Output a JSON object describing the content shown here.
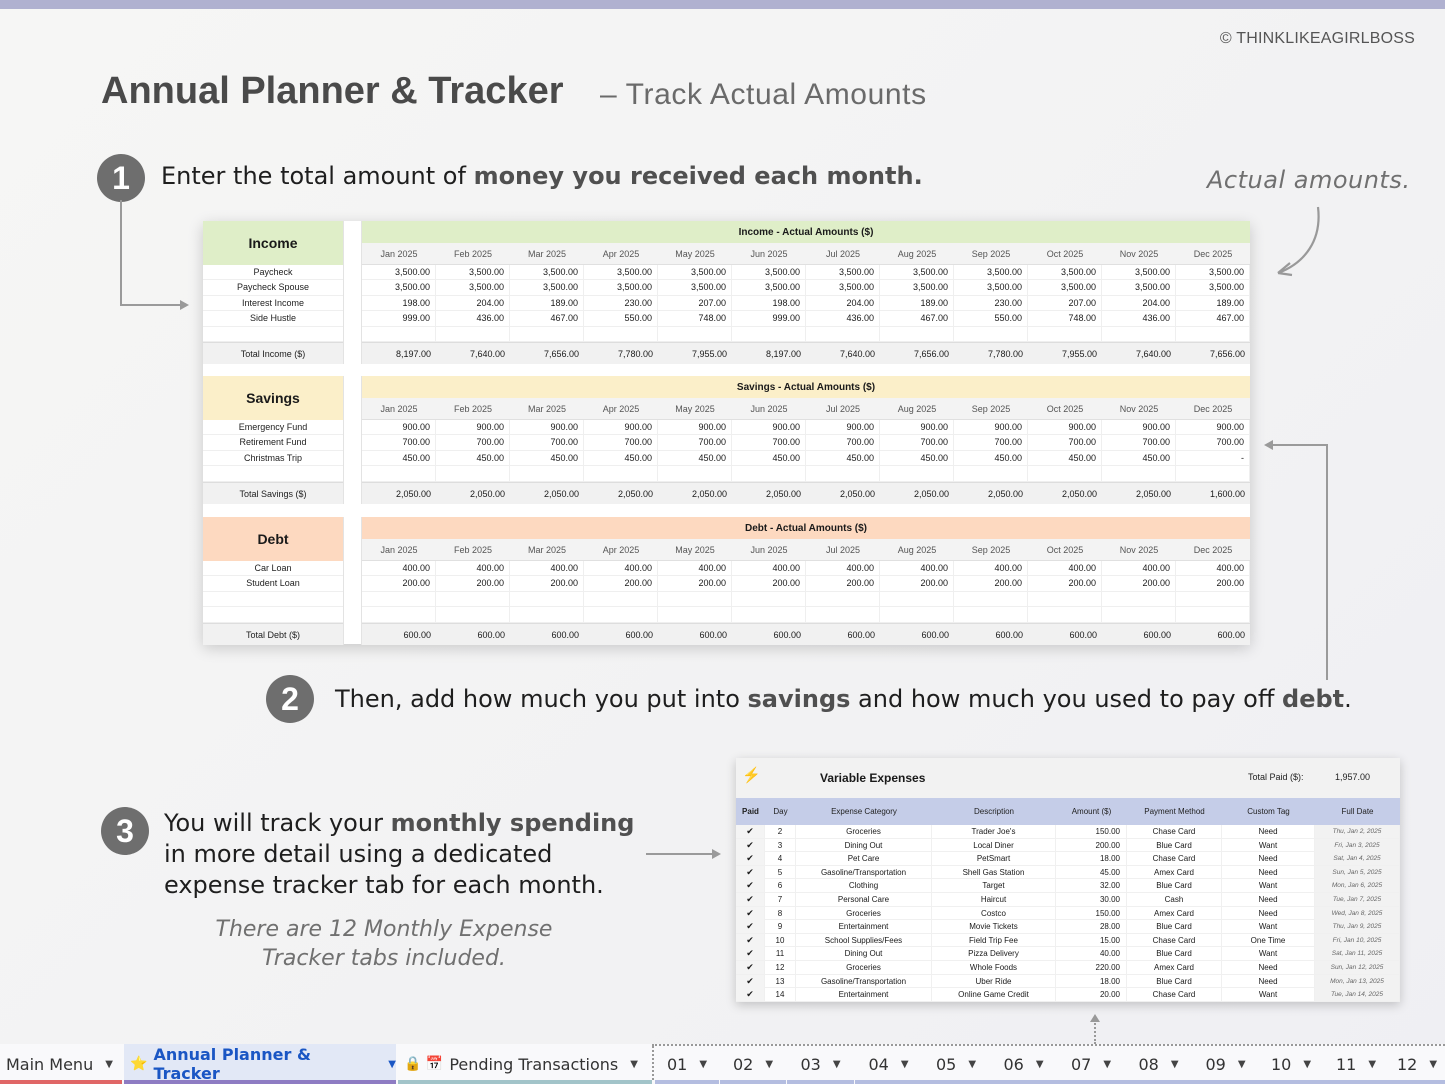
{
  "header": {
    "copyright": "© THINKLIKEAGIRLBOSS",
    "title": "Annual Planner & Tracker",
    "subtitle": "– Track Actual Amounts",
    "annotation": "Actual amounts."
  },
  "steps": [
    {
      "number": "1",
      "text_pre": "Enter the total amount of ",
      "text_bold": "money you received each month."
    },
    {
      "number": "2",
      "text_pre": "Then, add how much you put into ",
      "bold1": "savings",
      "text_mid": " and how much you used to pay off ",
      "bold2": "debt",
      "text_post": "."
    },
    {
      "number": "3",
      "line1_pre": "You will track your ",
      "line1_bold": "monthly spending",
      "line2": "in more detail using a dedicated",
      "line3": "expense tracker tab for each month.",
      "note1": "There are 12 Monthly Expense",
      "note2": "Tracker tabs included."
    }
  ],
  "months": [
    "Jan 2025",
    "Feb 2025",
    "Mar 2025",
    "Apr 2025",
    "May 2025",
    "Jun 2025",
    "Jul 2025",
    "Aug 2025",
    "Sep 2025",
    "Oct 2025",
    "Nov 2025",
    "Dec 2025"
  ],
  "income": {
    "label": "Income",
    "header": "Income - Actual Amounts ($)",
    "color": "#dfeec8",
    "rows": [
      {
        "name": "Paycheck",
        "values": [
          "3,500.00",
          "3,500.00",
          "3,500.00",
          "3,500.00",
          "3,500.00",
          "3,500.00",
          "3,500.00",
          "3,500.00",
          "3,500.00",
          "3,500.00",
          "3,500.00",
          "3,500.00"
        ]
      },
      {
        "name": "Paycheck Spouse",
        "values": [
          "3,500.00",
          "3,500.00",
          "3,500.00",
          "3,500.00",
          "3,500.00",
          "3,500.00",
          "3,500.00",
          "3,500.00",
          "3,500.00",
          "3,500.00",
          "3,500.00",
          "3,500.00"
        ]
      },
      {
        "name": "Interest Income",
        "values": [
          "198.00",
          "204.00",
          "189.00",
          "230.00",
          "207.00",
          "198.00",
          "204.00",
          "189.00",
          "230.00",
          "207.00",
          "204.00",
          "189.00"
        ]
      },
      {
        "name": "Side Hustle",
        "values": [
          "999.00",
          "436.00",
          "467.00",
          "550.00",
          "748.00",
          "999.00",
          "436.00",
          "467.00",
          "550.00",
          "748.00",
          "436.00",
          "467.00"
        ]
      },
      {
        "name": "",
        "values": [
          "",
          "",
          "",
          "",
          "",
          "",
          "",
          "",
          "",
          "",
          "",
          ""
        ]
      }
    ],
    "total_label": "Total Income ($)",
    "totals": [
      "8,197.00",
      "7,640.00",
      "7,656.00",
      "7,780.00",
      "7,955.00",
      "8,197.00",
      "7,640.00",
      "7,656.00",
      "7,780.00",
      "7,955.00",
      "7,640.00",
      "7,656.00"
    ]
  },
  "savings": {
    "label": "Savings",
    "header": "Savings - Actual Amounts ($)",
    "color": "#fbefc9",
    "rows": [
      {
        "name": "Emergency Fund",
        "values": [
          "900.00",
          "900.00",
          "900.00",
          "900.00",
          "900.00",
          "900.00",
          "900.00",
          "900.00",
          "900.00",
          "900.00",
          "900.00",
          "900.00"
        ]
      },
      {
        "name": "Retirement Fund",
        "values": [
          "700.00",
          "700.00",
          "700.00",
          "700.00",
          "700.00",
          "700.00",
          "700.00",
          "700.00",
          "700.00",
          "700.00",
          "700.00",
          "700.00"
        ]
      },
      {
        "name": "Christmas Trip",
        "values": [
          "450.00",
          "450.00",
          "450.00",
          "450.00",
          "450.00",
          "450.00",
          "450.00",
          "450.00",
          "450.00",
          "450.00",
          "450.00",
          "-"
        ]
      },
      {
        "name": "",
        "values": [
          "",
          "",
          "",
          "",
          "",
          "",
          "",
          "",
          "",
          "",
          "",
          ""
        ]
      }
    ],
    "total_label": "Total Savings ($)",
    "totals": [
      "2,050.00",
      "2,050.00",
      "2,050.00",
      "2,050.00",
      "2,050.00",
      "2,050.00",
      "2,050.00",
      "2,050.00",
      "2,050.00",
      "2,050.00",
      "2,050.00",
      "1,600.00"
    ]
  },
  "debt": {
    "label": "Debt",
    "header": "Debt - Actual Amounts ($)",
    "color": "#fdd9c0",
    "rows": [
      {
        "name": "Car Loan",
        "values": [
          "400.00",
          "400.00",
          "400.00",
          "400.00",
          "400.00",
          "400.00",
          "400.00",
          "400.00",
          "400.00",
          "400.00",
          "400.00",
          "400.00"
        ]
      },
      {
        "name": "Student Loan",
        "values": [
          "200.00",
          "200.00",
          "200.00",
          "200.00",
          "200.00",
          "200.00",
          "200.00",
          "200.00",
          "200.00",
          "200.00",
          "200.00",
          "200.00"
        ]
      },
      {
        "name": "",
        "values": [
          "",
          "",
          "",
          "",
          "",
          "",
          "",
          "",
          "",
          "",
          "",
          ""
        ]
      },
      {
        "name": "",
        "values": [
          "",
          "",
          "",
          "",
          "",
          "",
          "",
          "",
          "",
          "",
          "",
          ""
        ]
      }
    ],
    "total_label": "Total Debt ($)",
    "totals": [
      "600.00",
      "600.00",
      "600.00",
      "600.00",
      "600.00",
      "600.00",
      "600.00",
      "600.00",
      "600.00",
      "600.00",
      "600.00",
      "600.00"
    ]
  },
  "expenses": {
    "icon": "⚡",
    "title": "Variable Expenses",
    "total_label": "Total Paid ($):",
    "total_value": "1,957.00",
    "columns": [
      "Paid",
      "Day",
      "Expense Category",
      "Description",
      "Amount ($)",
      "Payment Method",
      "Custom Tag",
      "Full Date"
    ],
    "rows": [
      [
        "✔",
        "2",
        "Groceries",
        "Trader Joe's",
        "150.00",
        "Chase Card",
        "Need",
        "Thu, Jan 2, 2025"
      ],
      [
        "✔",
        "3",
        "Dining Out",
        "Local Diner",
        "200.00",
        "Blue Card",
        "Want",
        "Fri, Jan 3, 2025"
      ],
      [
        "✔",
        "4",
        "Pet Care",
        "PetSmart",
        "18.00",
        "Chase Card",
        "Need",
        "Sat, Jan 4, 2025"
      ],
      [
        "✔",
        "5",
        "Gasoline/Transportation",
        "Shell Gas Station",
        "45.00",
        "Amex Card",
        "Need",
        "Sun, Jan 5, 2025"
      ],
      [
        "✔",
        "6",
        "Clothing",
        "Target",
        "32.00",
        "Blue Card",
        "Want",
        "Mon, Jan 6, 2025"
      ],
      [
        "✔",
        "7",
        "Personal Care",
        "Haircut",
        "30.00",
        "Cash",
        "Need",
        "Tue, Jan 7, 2025"
      ],
      [
        "✔",
        "8",
        "Groceries",
        "Costco",
        "150.00",
        "Amex Card",
        "Need",
        "Wed, Jan 8, 2025"
      ],
      [
        "✔",
        "9",
        "Entertainment",
        "Movie Tickets",
        "28.00",
        "Blue Card",
        "Want",
        "Thu, Jan 9, 2025"
      ],
      [
        "✔",
        "10",
        "School Supplies/Fees",
        "Field Trip Fee",
        "15.00",
        "Chase Card",
        "One Time",
        "Fri, Jan 10, 2025"
      ],
      [
        "✔",
        "11",
        "Dining Out",
        "Pizza Delivery",
        "40.00",
        "Blue Card",
        "Want",
        "Sat, Jan 11, 2025"
      ],
      [
        "✔",
        "12",
        "Groceries",
        "Whole Foods",
        "220.00",
        "Amex Card",
        "Need",
        "Sun, Jan 12, 2025"
      ],
      [
        "✔",
        "13",
        "Gasoline/Transportation",
        "Uber Ride",
        "18.00",
        "Blue Card",
        "Need",
        "Mon, Jan 13, 2025"
      ],
      [
        "✔",
        "14",
        "Entertainment",
        "Online Game Credit",
        "20.00",
        "Chase Card",
        "Want",
        "Tue, Jan 14, 2025"
      ]
    ]
  },
  "tabs": [
    {
      "label": "Main Menu",
      "icons": "",
      "color": "#e06666",
      "active": false
    },
    {
      "label": "Annual Planner & Tracker",
      "icons": "⭐",
      "color": "#8e7cc3",
      "active": true
    },
    {
      "label": "Pending Transactions",
      "icons": "🔒 📅",
      "color": "#a2c4c9",
      "active": false
    },
    {
      "label": "01",
      "color": "#b4bde0"
    },
    {
      "label": "02",
      "color": "#b4bde0"
    },
    {
      "label": "03",
      "color": "#b4bde0"
    },
    {
      "label": "04",
      "color": "#b4bde0"
    },
    {
      "label": "05",
      "color": "#b4bde0"
    },
    {
      "label": "06",
      "color": "#b4bde0"
    },
    {
      "label": "07",
      "color": "#b4bde0"
    },
    {
      "label": "08",
      "color": "#b4bde0"
    },
    {
      "label": "09",
      "color": "#b4bde0"
    },
    {
      "label": "10",
      "color": "#b4bde0"
    },
    {
      "label": "11",
      "color": "#b4bde0"
    },
    {
      "label": "12",
      "color": "#b4bde0"
    }
  ]
}
